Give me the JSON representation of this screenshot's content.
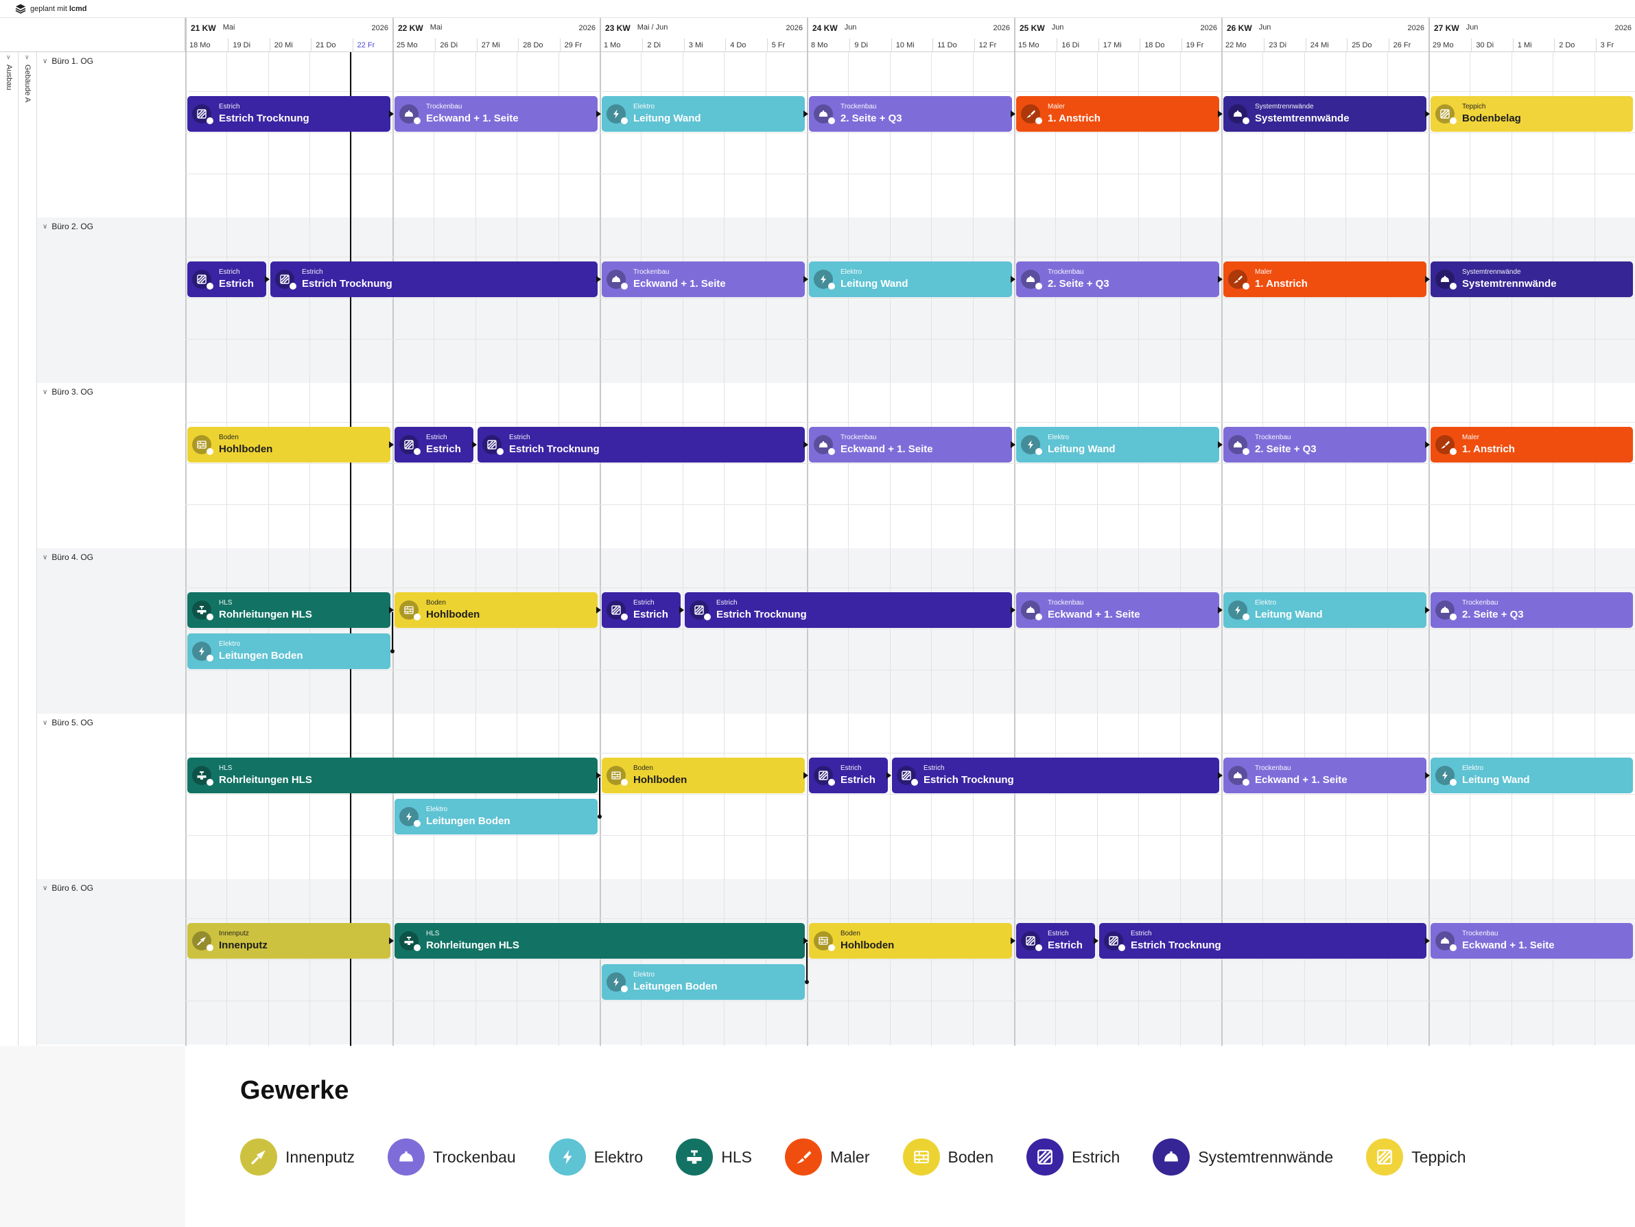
{
  "topbar": {
    "prefix": "geplant mit",
    "brand": "lcmd"
  },
  "left": {
    "level1": "Ausbau",
    "level2": "Gebäude A"
  },
  "weeks": [
    {
      "kw": "21 KW",
      "month": "Mai",
      "year": "2026",
      "days": [
        "18 Mo",
        "19 Di",
        "20 Mi",
        "21 Do",
        "22 Fr"
      ]
    },
    {
      "kw": "22 KW",
      "month": "Mai",
      "year": "2026",
      "days": [
        "25 Mo",
        "26 Di",
        "27 Mi",
        "28 Do",
        "29 Fr"
      ]
    },
    {
      "kw": "23 KW",
      "month": "Mai / Jun",
      "year": "2026",
      "days": [
        "1 Mo",
        "2 Di",
        "3 Mi",
        "4 Do",
        "5 Fr"
      ]
    },
    {
      "kw": "24 KW",
      "month": "Jun",
      "year": "2026",
      "days": [
        "8 Mo",
        "9 Di",
        "10 Mi",
        "11 Do",
        "12 Fr"
      ]
    },
    {
      "kw": "25 KW",
      "month": "Jun",
      "year": "2026",
      "days": [
        "15 Mo",
        "16 Di",
        "17 Mi",
        "18 Do",
        "19 Fr"
      ]
    },
    {
      "kw": "26 KW",
      "month": "Jun",
      "year": "2026",
      "days": [
        "22 Mo",
        "23 Di",
        "24 Mi",
        "25 Do",
        "26 Fr"
      ]
    },
    {
      "kw": "27 KW",
      "month": "Jun",
      "year": "2026",
      "days": [
        "29 Mo",
        "30 Di",
        "1 Mi",
        "2 Do",
        "3 Fr"
      ]
    }
  ],
  "today": "22 Fr",
  "rows": [
    {
      "label": "Büro 1. OG",
      "tasks": [
        {
          "trade": "Estrich",
          "title": "Estrich Trocknung",
          "start": 0,
          "end": 5,
          "lane": 0
        },
        {
          "trade": "Trockenbau",
          "title": "Eckwand + 1. Seite",
          "start": 5,
          "end": 10,
          "lane": 0
        },
        {
          "trade": "Elektro",
          "title": "Leitung Wand",
          "start": 10,
          "end": 15,
          "lane": 0
        },
        {
          "trade": "Trockenbau",
          "title": "2. Seite + Q3",
          "start": 15,
          "end": 20,
          "lane": 0
        },
        {
          "trade": "Maler",
          "title": "1. Anstrich",
          "start": 20,
          "end": 25,
          "lane": 0
        },
        {
          "trade": "Systemtrennwände",
          "title": "Systemtrennwände",
          "start": 25,
          "end": 30,
          "lane": 0
        },
        {
          "trade": "Teppich",
          "title": "Bodenbelag",
          "start": 30,
          "end": 35,
          "lane": 0
        }
      ]
    },
    {
      "label": "Büro 2. OG",
      "tasks": [
        {
          "trade": "Estrich",
          "title": "Estrich",
          "start": 0,
          "end": 2,
          "lane": 0
        },
        {
          "trade": "Estrich",
          "title": "Estrich Trocknung",
          "start": 2,
          "end": 10,
          "lane": 0
        },
        {
          "trade": "Trockenbau",
          "title": "Eckwand + 1. Seite",
          "start": 10,
          "end": 15,
          "lane": 0
        },
        {
          "trade": "Elektro",
          "title": "Leitung Wand",
          "start": 15,
          "end": 20,
          "lane": 0
        },
        {
          "trade": "Trockenbau",
          "title": "2. Seite + Q3",
          "start": 20,
          "end": 25,
          "lane": 0
        },
        {
          "trade": "Maler",
          "title": "1. Anstrich",
          "start": 25,
          "end": 30,
          "lane": 0
        },
        {
          "trade": "Systemtrennwände",
          "title": "Systemtrennwände",
          "start": 30,
          "end": 35,
          "lane": 0
        }
      ]
    },
    {
      "label": "Büro 3. OG",
      "tasks": [
        {
          "trade": "Boden",
          "title": "Hohlboden",
          "start": 0,
          "end": 5,
          "lane": 0
        },
        {
          "trade": "Estrich",
          "title": "Estrich",
          "start": 5,
          "end": 7,
          "lane": 0
        },
        {
          "trade": "Estrich",
          "title": "Estrich Trocknung",
          "start": 7,
          "end": 15,
          "lane": 0
        },
        {
          "trade": "Trockenbau",
          "title": "Eckwand + 1. Seite",
          "start": 15,
          "end": 20,
          "lane": 0
        },
        {
          "trade": "Elektro",
          "title": "Leitung Wand",
          "start": 20,
          "end": 25,
          "lane": 0
        },
        {
          "trade": "Trockenbau",
          "title": "2. Seite + Q3",
          "start": 25,
          "end": 30,
          "lane": 0
        },
        {
          "trade": "Maler",
          "title": "1. Anstrich",
          "start": 30,
          "end": 35,
          "lane": 0
        }
      ]
    },
    {
      "label": "Büro 4. OG",
      "tasks": [
        {
          "trade": "HLS",
          "title": "Rohrleitungen HLS",
          "start": 0,
          "end": 5,
          "lane": 0
        },
        {
          "trade": "Elektro",
          "title": "Leitungen Boden",
          "start": 0,
          "end": 5,
          "lane": 1
        },
        {
          "trade": "Boden",
          "title": "Hohlboden",
          "start": 5,
          "end": 10,
          "lane": 0
        },
        {
          "trade": "Estrich",
          "title": "Estrich",
          "start": 10,
          "end": 12,
          "lane": 0
        },
        {
          "trade": "Estrich",
          "title": "Estrich Trocknung",
          "start": 12,
          "end": 20,
          "lane": 0
        },
        {
          "trade": "Trockenbau",
          "title": "Eckwand + 1. Seite",
          "start": 20,
          "end": 25,
          "lane": 0
        },
        {
          "trade": "Elektro",
          "title": "Leitung Wand",
          "start": 25,
          "end": 30,
          "lane": 0
        },
        {
          "trade": "Trockenbau",
          "title": "2. Seite + Q3",
          "start": 30,
          "end": 35,
          "lane": 0
        }
      ]
    },
    {
      "label": "Büro 5. OG",
      "tasks": [
        {
          "trade": "HLS",
          "title": "Rohrleitungen HLS",
          "start": 0,
          "end": 10,
          "lane": 0
        },
        {
          "trade": "Elektro",
          "title": "Leitungen Boden",
          "start": 5,
          "end": 10,
          "lane": 1
        },
        {
          "trade": "Boden",
          "title": "Hohlboden",
          "start": 10,
          "end": 15,
          "lane": 0
        },
        {
          "trade": "Estrich",
          "title": "Estrich",
          "start": 15,
          "end": 17,
          "lane": 0
        },
        {
          "trade": "Estrich",
          "title": "Estrich Trocknung",
          "start": 17,
          "end": 25,
          "lane": 0
        },
        {
          "trade": "Trockenbau",
          "title": "Eckwand + 1. Seite",
          "start": 25,
          "end": 30,
          "lane": 0
        },
        {
          "trade": "Elektro",
          "title": "Leitung Wand",
          "start": 30,
          "end": 35,
          "lane": 0
        }
      ]
    },
    {
      "label": "Büro 6. OG",
      "tasks": [
        {
          "trade": "Innenputz",
          "title": "Innenputz",
          "start": 0,
          "end": 5,
          "lane": 0
        },
        {
          "trade": "HLS",
          "title": "Rohrleitungen HLS",
          "start": 5,
          "end": 15,
          "lane": 0
        },
        {
          "trade": "Elektro",
          "title": "Leitungen Boden",
          "start": 10,
          "end": 15,
          "lane": 1
        },
        {
          "trade": "Boden",
          "title": "Hohlboden",
          "start": 15,
          "end": 20,
          "lane": 0
        },
        {
          "trade": "Estrich",
          "title": "Estrich",
          "start": 20,
          "end": 22,
          "lane": 0
        },
        {
          "trade": "Estrich",
          "title": "Estrich Trocknung",
          "start": 22,
          "end": 30,
          "lane": 0
        },
        {
          "trade": "Trockenbau",
          "title": "Eckwand + 1. Seite",
          "start": 30,
          "end": 35,
          "lane": 0
        }
      ]
    }
  ],
  "trades": {
    "Innenputz": {
      "color": "#cdc23f",
      "icon": "trowel-icon"
    },
    "Trockenbau": {
      "color": "#7e6dd9",
      "icon": "helmet-icon"
    },
    "Elektro": {
      "color": "#5ec3d3",
      "icon": "lightning-icon"
    },
    "HLS": {
      "color": "#127364",
      "icon": "valve-icon"
    },
    "Maler": {
      "color": "#f04e0f",
      "icon": "brush-icon"
    },
    "Boden": {
      "color": "#edd332",
      "icon": "floor-icon"
    },
    "Estrich": {
      "color": "#3a24a3",
      "icon": "hatch-icon"
    },
    "Systemtrennwände": {
      "color": "#362594",
      "icon": "helmet-icon"
    },
    "Teppich": {
      "color": "#f0d43a",
      "icon": "hatch-icon"
    }
  },
  "legend": {
    "title": "Gewerke",
    "items": [
      "Innenputz",
      "Trockenbau",
      "Elektro",
      "HLS",
      "Maler",
      "Boden",
      "Estrich",
      "Systemtrennwände",
      "Teppich"
    ]
  }
}
